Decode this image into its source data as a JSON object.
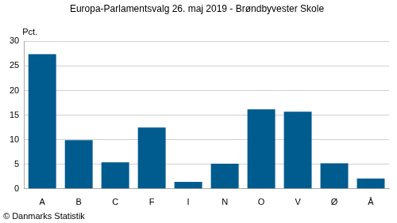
{
  "chart_data": {
    "type": "bar",
    "title": "Europa-Parlamentsvalg 26. maj 2019 - Brøndbyvester Skole",
    "ylabel": "Pct.",
    "annotations": [
      "© Danmarks Statistik"
    ],
    "categories": [
      "A",
      "B",
      "C",
      "F",
      "I",
      "N",
      "O",
      "V",
      "Ø",
      "Å"
    ],
    "values": [
      27.4,
      9.9,
      5.4,
      12.5,
      1.4,
      5.1,
      16.2,
      15.7,
      5.2,
      2.1
    ],
    "color": "#005b8e",
    "ylim": [
      0,
      30
    ],
    "yticks": [
      0,
      5,
      10,
      15,
      20,
      25,
      30
    ],
    "grid": true
  }
}
